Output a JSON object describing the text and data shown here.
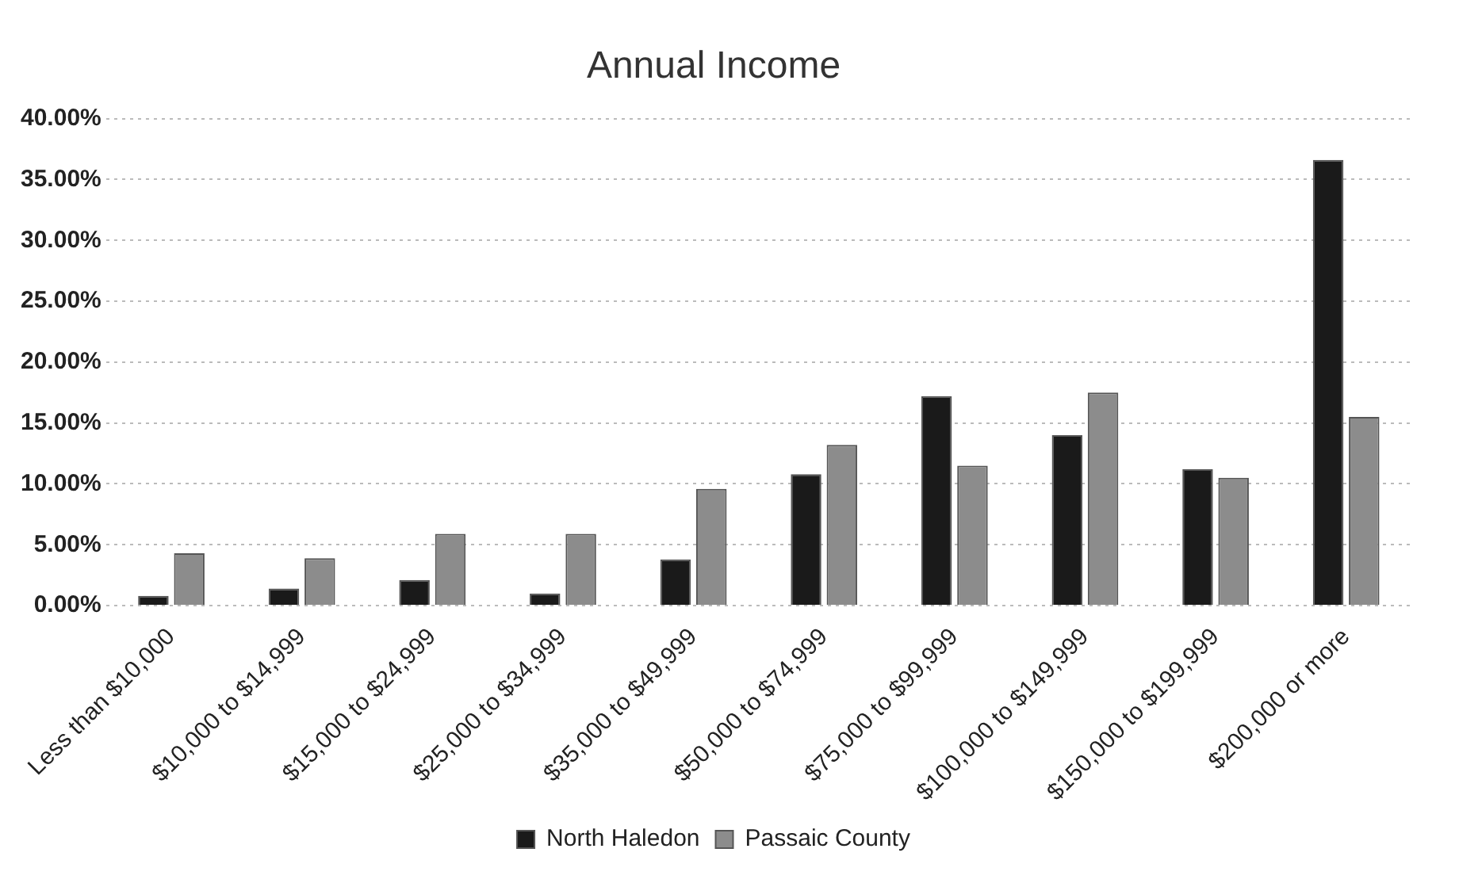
{
  "chart_data": {
    "type": "bar",
    "title": "Annual Income",
    "categories": [
      "Less than $10,000",
      "$10,000 to $14,999",
      "$15,000 to $24,999",
      "$25,000 to $34,999",
      "$35,000 to $49,999",
      "$50,000 to $74,999",
      "$75,000 to $99,999",
      "$100,000 to $149,999",
      "$150,000 to $199,999",
      "$200,000 or more"
    ],
    "series": [
      {
        "name": "North Haledon",
        "color": "#1a1a1a",
        "values": [
          0.8,
          1.4,
          2.1,
          1.0,
          3.8,
          10.8,
          17.2,
          14.0,
          11.2,
          36.6
        ]
      },
      {
        "name": "Passaic County",
        "color": "#8c8c8c",
        "values": [
          4.3,
          3.9,
          5.9,
          5.9,
          9.6,
          13.2,
          11.5,
          17.5,
          10.5,
          15.5
        ]
      }
    ],
    "ylim": [
      0,
      40
    ],
    "yticks": [
      {
        "value": 0,
        "label": "0.00%"
      },
      {
        "value": 5,
        "label": "5.00%"
      },
      {
        "value": 10,
        "label": "10.00%"
      },
      {
        "value": 15,
        "label": "15.00%"
      },
      {
        "value": 20,
        "label": "20.00%"
      },
      {
        "value": 25,
        "label": "25.00%"
      },
      {
        "value": 30,
        "label": "30.00%"
      },
      {
        "value": 35,
        "label": "35.00%"
      },
      {
        "value": 40,
        "label": "40.00%"
      }
    ],
    "grid": "y",
    "legend": "bottom"
  }
}
